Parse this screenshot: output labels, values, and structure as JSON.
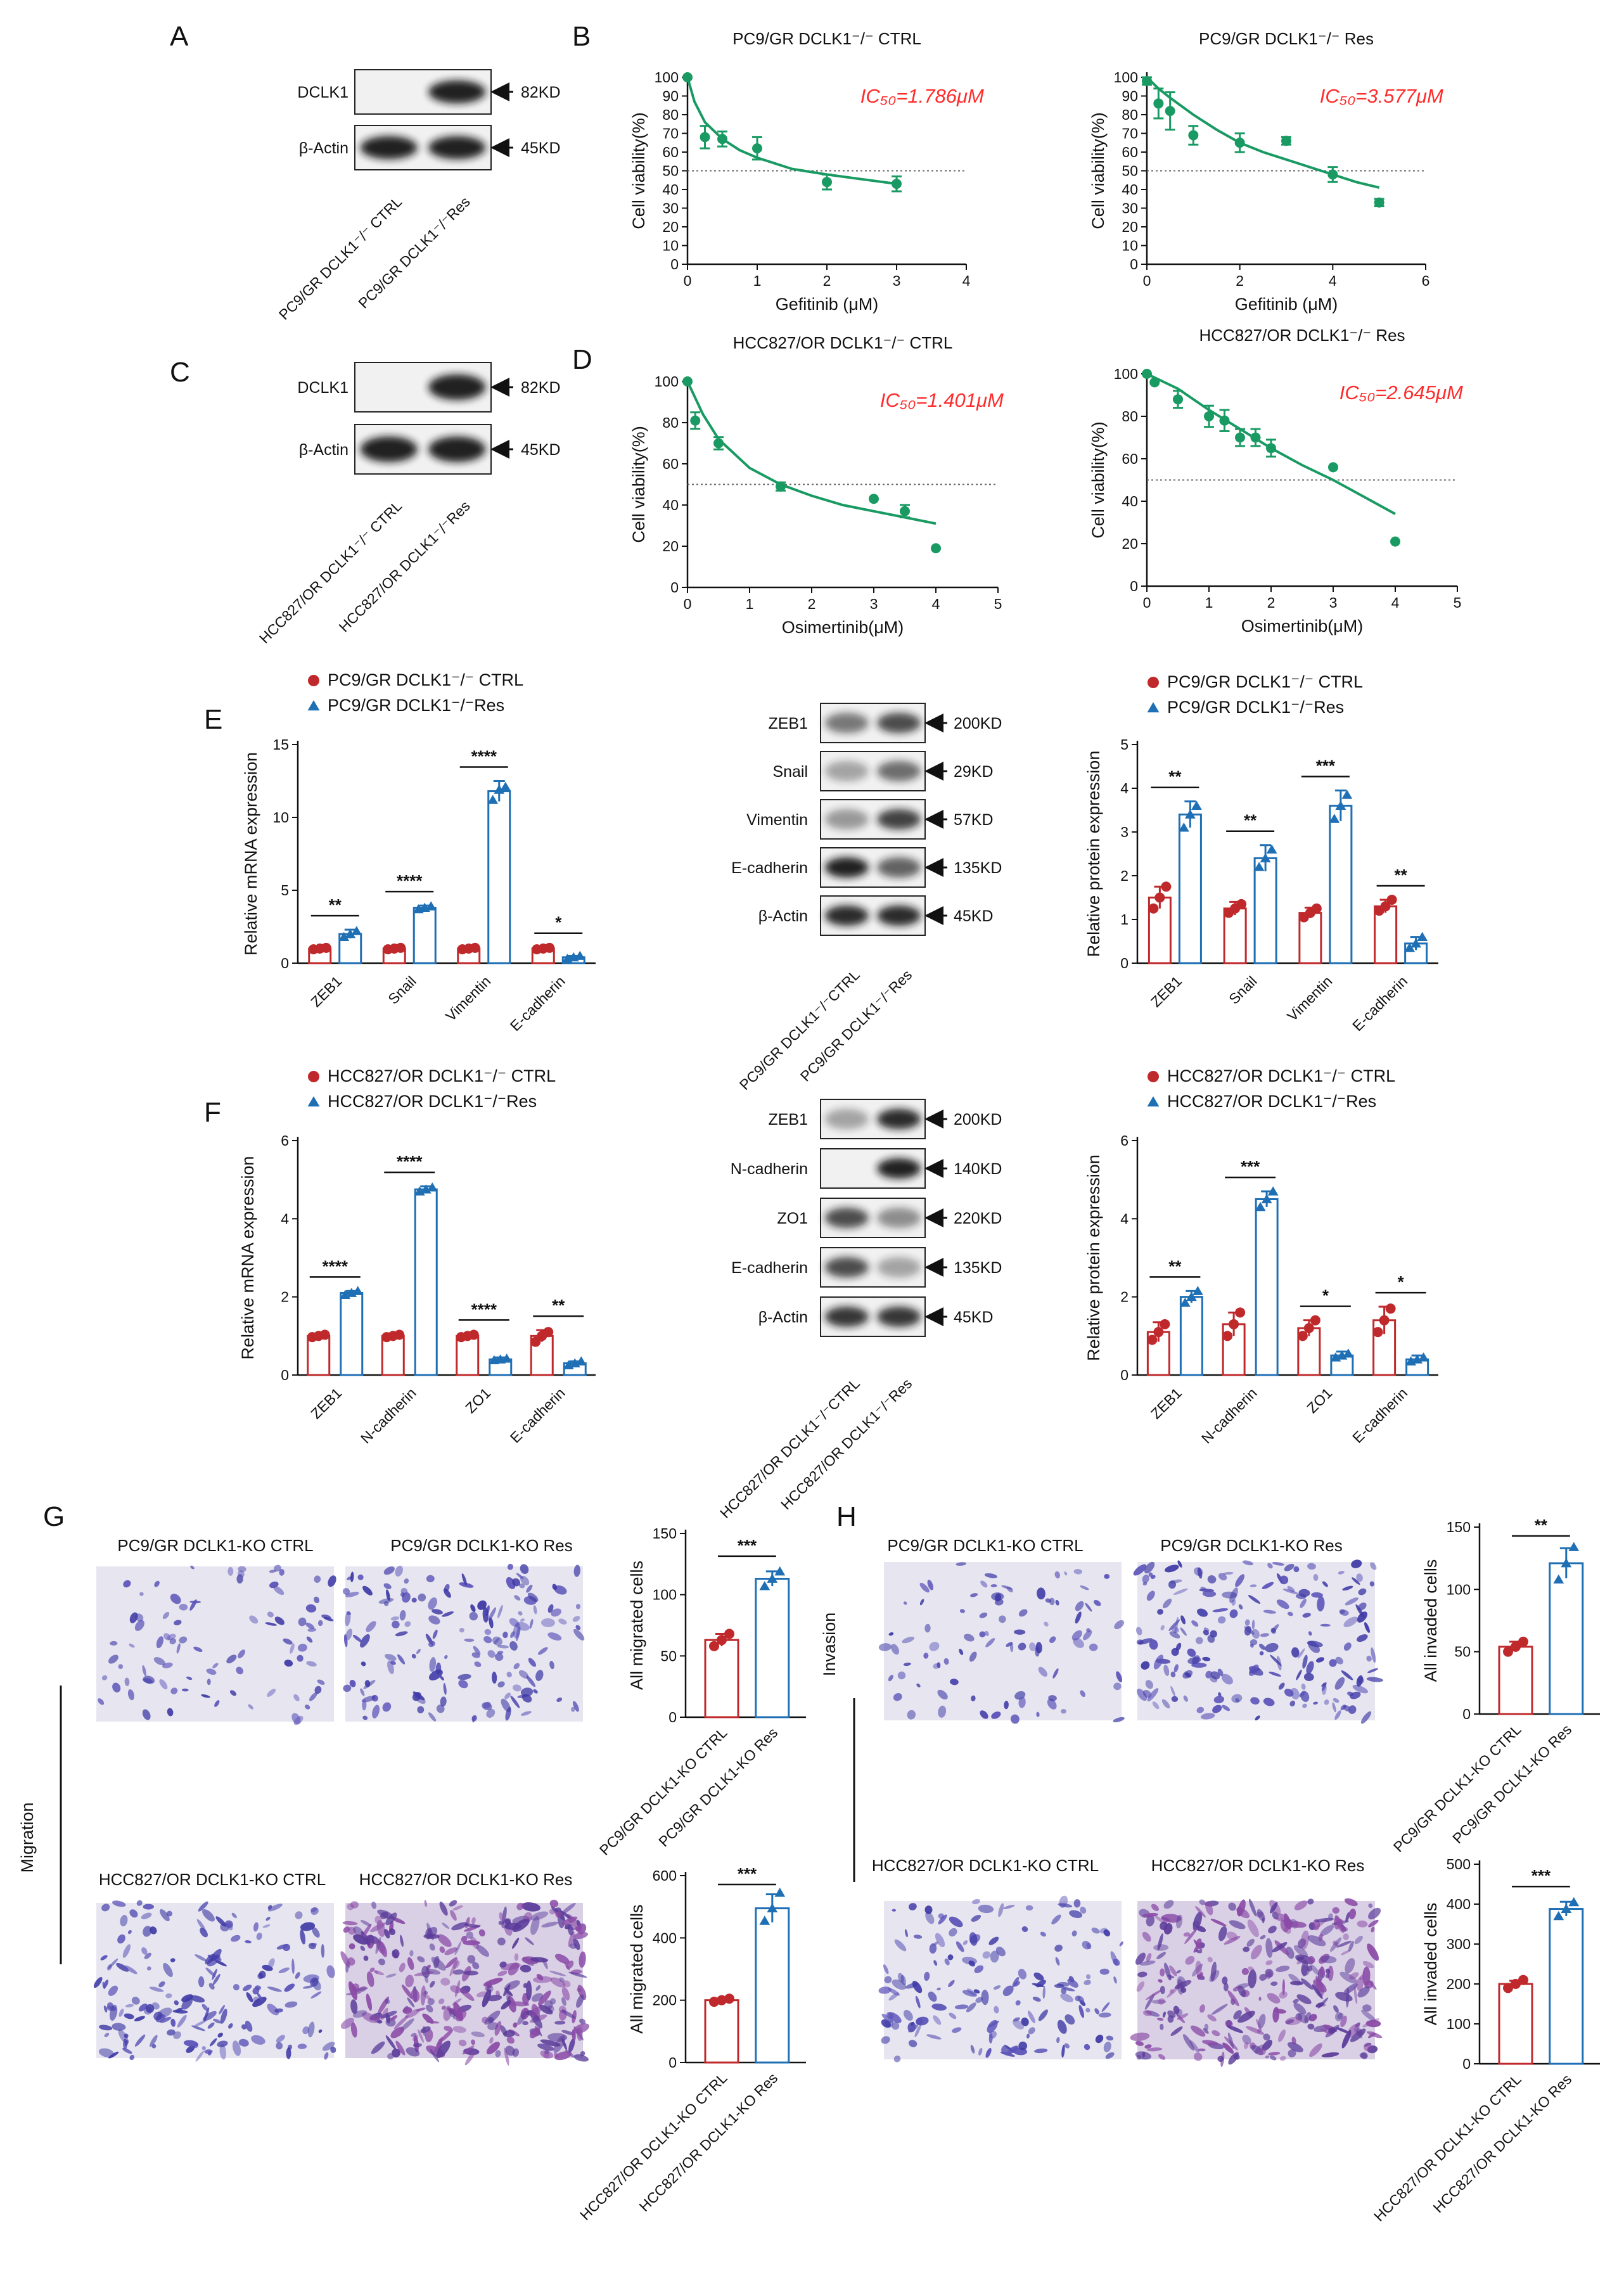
{
  "colors": {
    "ctrl": "#c0292c",
    "res": "#1f6fb5",
    "curve": "#1a9a63",
    "ic50": "#ff2b2b"
  },
  "panels": {
    "A": {
      "letter": "A",
      "bands": [
        "DCLK1",
        "β-Actin"
      ],
      "sizes": [
        "82KD",
        "45KD"
      ],
      "lanes": [
        "PC9/GR DCLK1⁻/⁻ CTRL",
        "PC9/GR DCLK1⁻/⁻Res"
      ],
      "blot_intensity": [
        [
          0.05,
          0.95
        ],
        [
          0.95,
          0.95
        ]
      ]
    },
    "C": {
      "letter": "C",
      "bands": [
        "DCLK1",
        "β-Actin"
      ],
      "sizes": [
        "82KD",
        "45KD"
      ],
      "lanes": [
        "HCC827/OR DCLK1⁻/⁻ CTRL",
        "HCC827/OR DCLK1⁻/⁻Res"
      ],
      "blot_intensity": [
        [
          0.05,
          0.95
        ],
        [
          0.95,
          0.95
        ]
      ]
    },
    "B": {
      "letter": "B",
      "xlabel": "Gefitinib (μM)",
      "ylabel": "Cell viability(%)",
      "ref_line": 50
    },
    "D": {
      "letter": "D",
      "xlabel": "Osimertinib(μM)",
      "ylabel": "Cell viability(%)",
      "ref_line": 50
    },
    "E": {
      "letter": "E",
      "blot_bands": [
        "ZEB1",
        "Snail",
        "Vimentin",
        "E-cadherin",
        "β-Actin"
      ],
      "blot_sizes": [
        "200KD",
        "29KD",
        "57KD",
        "135KD",
        "45KD"
      ],
      "blot_lanes": [
        "PC9/GR DCLK1⁻/⁻CTRL",
        "PC9/GR DCLK1⁻/⁻Res"
      ],
      "blot_intensity": [
        [
          0.55,
          0.75
        ],
        [
          0.35,
          0.6
        ],
        [
          0.4,
          0.8
        ],
        [
          0.95,
          0.65
        ],
        [
          0.9,
          0.9
        ]
      ]
    },
    "F": {
      "letter": "F",
      "blot_bands": [
        "ZEB1",
        "N-cadherin",
        "ZO1",
        "E-cadherin",
        "β-Actin"
      ],
      "blot_sizes": [
        "200KD",
        "140KD",
        "220KD",
        "135KD",
        "45KD"
      ],
      "blot_lanes": [
        "HCC827/OR DCLK1⁻/⁻CTRL",
        "HCC827/OR DCLK1⁻/⁻Res"
      ],
      "blot_intensity": [
        [
          0.35,
          0.9
        ],
        [
          0.05,
          0.95
        ],
        [
          0.75,
          0.45
        ],
        [
          0.75,
          0.35
        ],
        [
          0.85,
          0.85
        ]
      ]
    },
    "G": {
      "letter": "G",
      "side_label": "Migration",
      "image_titles": [
        "PC9/GR DCLK1-KO CTRL",
        "PC9/GR DCLK1-KO Res",
        "HCC827/OR DCLK1-KO CTRL",
        "HCC827/OR DCLK1-KO Res"
      ],
      "image_density": [
        0.25,
        0.45,
        0.5,
        0.9
      ]
    },
    "H": {
      "letter": "H",
      "side_label": "Invasion",
      "image_titles": [
        "PC9/GR DCLK1-KO CTRL",
        "PC9/GR DCLK1-KO Res",
        "HCC827/OR DCLK1-KO CTRL",
        "HCC827/OR DCLK1-KO Res"
      ],
      "image_density": [
        0.25,
        0.55,
        0.45,
        0.85
      ]
    }
  },
  "chart_data": [
    {
      "id": "B1",
      "type": "scatter",
      "title": "PC9/GR DCLK1⁻/⁻ CTRL",
      "xlabel": "Gefitinib (μM)",
      "ylabel": "Cell viability(%)",
      "xlim": [
        0,
        4
      ],
      "ylim": [
        0,
        100
      ],
      "xticks": [
        0,
        1,
        2,
        3,
        4
      ],
      "yticks": [
        0,
        10,
        20,
        30,
        40,
        50,
        60,
        70,
        80,
        90,
        100
      ],
      "ic50_label": "IC₅₀=1.786μM",
      "x": [
        0,
        0.25,
        0.5,
        1,
        2,
        3
      ],
      "y": [
        100,
        68,
        67,
        62,
        44,
        43
      ],
      "err": [
        0,
        6,
        4,
        6,
        4,
        4
      ],
      "curve": [
        [
          0,
          100
        ],
        [
          0.1,
          87
        ],
        [
          0.25,
          76
        ],
        [
          0.5,
          67
        ],
        [
          0.75,
          61
        ],
        [
          1,
          57
        ],
        [
          1.5,
          51
        ],
        [
          2,
          48
        ],
        [
          2.5,
          45.5
        ],
        [
          3,
          43
        ]
      ]
    },
    {
      "id": "B2",
      "type": "scatter",
      "title": "PC9/GR DCLK1⁻/⁻ Res",
      "xlabel": "Gefitinib (μM)",
      "ylabel": "Cell viability(%)",
      "xlim": [
        0,
        6
      ],
      "ylim": [
        0,
        100
      ],
      "xticks": [
        0,
        2,
        4,
        6
      ],
      "yticks": [
        0,
        10,
        20,
        30,
        40,
        50,
        60,
        70,
        80,
        90,
        100
      ],
      "ic50_label": "IC₅₀=3.577μM",
      "x": [
        0,
        0.25,
        0.5,
        1,
        2,
        3,
        4,
        5
      ],
      "y": [
        98,
        86,
        82,
        69,
        65,
        66,
        48,
        33
      ],
      "err": [
        2,
        8,
        10,
        5,
        5,
        2,
        4,
        2
      ],
      "curve": [
        [
          0,
          100
        ],
        [
          0.25,
          94
        ],
        [
          0.5,
          89
        ],
        [
          1,
          80
        ],
        [
          1.5,
          72
        ],
        [
          2,
          65
        ],
        [
          2.5,
          60
        ],
        [
          3,
          56
        ],
        [
          3.5,
          52
        ],
        [
          4,
          48
        ],
        [
          4.5,
          44
        ],
        [
          5,
          41
        ]
      ]
    },
    {
      "id": "D1",
      "type": "scatter",
      "title": "HCC827/OR DCLK1⁻/⁻ CTRL",
      "xlabel": "Osimertinib(μM)",
      "ylabel": "Cell viability(%)",
      "xlim": [
        0,
        5
      ],
      "ylim": [
        0,
        100
      ],
      "xticks": [
        0,
        1,
        2,
        3,
        4,
        5
      ],
      "yticks": [
        0,
        20,
        40,
        60,
        80,
        100
      ],
      "ic50_label": "IC₅₀=1.401μM",
      "x": [
        0,
        0.125,
        0.5,
        1.5,
        3,
        3.5,
        4
      ],
      "y": [
        100,
        81,
        70,
        49,
        43,
        37,
        19
      ],
      "err": [
        0,
        4,
        3,
        2,
        0,
        3,
        0
      ],
      "curve": [
        [
          0,
          100
        ],
        [
          0.25,
          84
        ],
        [
          0.5,
          72
        ],
        [
          1,
          58
        ],
        [
          1.5,
          50
        ],
        [
          2,
          44.5
        ],
        [
          2.5,
          40
        ],
        [
          3,
          37
        ],
        [
          3.5,
          34
        ],
        [
          4,
          31
        ]
      ]
    },
    {
      "id": "D2",
      "type": "scatter",
      "title": "HCC827/OR DCLK1⁻/⁻ Res",
      "xlabel": "Osimertinib(μM)",
      "ylabel": "Cell viability(%)",
      "xlim": [
        0,
        5
      ],
      "ylim": [
        0,
        100
      ],
      "xticks": [
        0,
        1,
        2,
        3,
        4,
        5
      ],
      "yticks": [
        0,
        20,
        40,
        60,
        80,
        100
      ],
      "ic50_label": "IC₅₀=2.645μM",
      "x": [
        0,
        0.125,
        0.5,
        1,
        1.25,
        1.5,
        1.75,
        2,
        3,
        4
      ],
      "y": [
        100,
        96,
        88,
        80,
        78,
        70,
        70,
        65,
        56,
        21
      ],
      "err": [
        0,
        0,
        4,
        5,
        5,
        4,
        4,
        4,
        0,
        0
      ],
      "curve": [
        [
          0,
          100
        ],
        [
          0.5,
          93
        ],
        [
          1,
          83
        ],
        [
          1.5,
          74
        ],
        [
          2,
          65
        ],
        [
          2.5,
          57
        ],
        [
          3,
          50
        ],
        [
          3.5,
          42
        ],
        [
          4,
          34
        ]
      ]
    },
    {
      "id": "E1",
      "type": "bar",
      "categories": [
        "ZEB1",
        "Snail",
        "Vimentin",
        "E-cadherin"
      ],
      "ylabel": "Relative mRNA expression",
      "ylim": [
        0,
        15
      ],
      "yticks": [
        0,
        5,
        10,
        15
      ],
      "legend": [
        "PC9/GR DCLK1⁻/⁻ CTRL",
        "PC9/GR DCLK1⁻/⁻Res"
      ],
      "series": [
        {
          "name": "PC9/GR DCLK1⁻/⁻ CTRL",
          "values": [
            1,
            1,
            1,
            1
          ],
          "err": [
            0.1,
            0.1,
            0.1,
            0.1
          ],
          "points": [
            [
              0.95,
              1.0,
              1.05
            ],
            [
              0.95,
              1.0,
              1.05
            ],
            [
              0.95,
              1.0,
              1.05
            ],
            [
              0.95,
              1.0,
              1.05
            ]
          ]
        },
        {
          "name": "PC9/GR DCLK1⁻/⁻Res",
          "values": [
            2,
            3.8,
            11.8,
            0.4
          ],
          "err": [
            0.3,
            0.15,
            0.7,
            0.1
          ],
          "points": [
            [
              1.8,
              2.0,
              2.2
            ],
            [
              3.7,
              3.8,
              3.9
            ],
            [
              11.2,
              11.9,
              12.1
            ],
            [
              0.3,
              0.4,
              0.5
            ]
          ]
        }
      ],
      "significance": [
        "**",
        "****",
        "****",
        "*"
      ]
    },
    {
      "id": "E2",
      "type": "bar",
      "categories": [
        "ZEB1",
        "Snail",
        "Vimentin",
        "E-cadherin"
      ],
      "ylabel": "Relative protein expression",
      "ylim": [
        0,
        5
      ],
      "yticks": [
        0,
        1,
        2,
        3,
        4,
        5
      ],
      "legend": [
        "PC9/GR DCLK1⁻/⁻ CTRL",
        "PC9/GR DCLK1⁻/⁻Res"
      ],
      "series": [
        {
          "name": "PC9/GR DCLK1⁻/⁻ CTRL",
          "values": [
            1.5,
            1.25,
            1.15,
            1.3
          ],
          "err": [
            0.25,
            0.15,
            0.12,
            0.15
          ],
          "points": [
            [
              1.25,
              1.5,
              1.75
            ],
            [
              1.15,
              1.25,
              1.35
            ],
            [
              1.05,
              1.15,
              1.25
            ],
            [
              1.2,
              1.3,
              1.45
            ]
          ]
        },
        {
          "name": "PC9/GR DCLK1⁻/⁻Res",
          "values": [
            3.4,
            2.4,
            3.6,
            0.45
          ],
          "err": [
            0.3,
            0.3,
            0.35,
            0.15
          ],
          "points": [
            [
              3.1,
              3.4,
              3.6
            ],
            [
              2.2,
              2.4,
              2.6
            ],
            [
              3.3,
              3.6,
              3.85
            ],
            [
              0.35,
              0.45,
              0.6
            ]
          ]
        }
      ],
      "significance": [
        "**",
        "**",
        "***",
        "**"
      ]
    },
    {
      "id": "F1",
      "type": "bar",
      "categories": [
        "ZEB1",
        "N-cadherin",
        "ZO1",
        "E-cadherin"
      ],
      "ylabel": "Relative mRNA expression",
      "ylim": [
        0,
        6
      ],
      "yticks": [
        0,
        2,
        4,
        6
      ],
      "legend": [
        "HCC827/OR DCLK1⁻/⁻ CTRL",
        "HCC827/OR DCLK1⁻/⁻Res"
      ],
      "series": [
        {
          "name": "HCC827/OR DCLK1⁻/⁻ CTRL",
          "values": [
            1,
            1,
            1,
            1
          ],
          "err": [
            0.05,
            0.05,
            0.05,
            0.15
          ],
          "points": [
            [
              0.97,
              1.0,
              1.03
            ],
            [
              0.97,
              1.0,
              1.03
            ],
            [
              0.97,
              1.0,
              1.03
            ],
            [
              0.85,
              1.0,
              1.1
            ]
          ]
        },
        {
          "name": "HCC827/OR DCLK1⁻/⁻Res",
          "values": [
            2.1,
            4.75,
            0.4,
            0.3
          ],
          "err": [
            0.05,
            0.08,
            0.05,
            0.05
          ],
          "points": [
            [
              2.05,
              2.1,
              2.15
            ],
            [
              4.7,
              4.75,
              4.8
            ],
            [
              0.38,
              0.4,
              0.42
            ],
            [
              0.25,
              0.3,
              0.35
            ]
          ]
        }
      ],
      "significance": [
        "****",
        "****",
        "****",
        "**"
      ]
    },
    {
      "id": "F2",
      "type": "bar",
      "categories": [
        "ZEB1",
        "N-cadherin",
        "ZO1",
        "E-cadherin"
      ],
      "ylabel": "Relative protein expression",
      "ylim": [
        0,
        6
      ],
      "yticks": [
        0,
        2,
        4,
        6
      ],
      "legend": [
        "HCC827/OR DCLK1⁻/⁻ CTRL",
        "HCC827/OR DCLK1⁻/⁻Res"
      ],
      "series": [
        {
          "name": "HCC827/OR DCLK1⁻/⁻ CTRL",
          "values": [
            1.1,
            1.3,
            1.2,
            1.4
          ],
          "err": [
            0.25,
            0.3,
            0.2,
            0.35
          ],
          "points": [
            [
              0.9,
              1.1,
              1.3
            ],
            [
              1.0,
              1.3,
              1.6
            ],
            [
              1.0,
              1.2,
              1.4
            ],
            [
              1.1,
              1.4,
              1.7
            ]
          ]
        },
        {
          "name": "HCC827/OR DCLK1⁻/⁻Res",
          "values": [
            2.0,
            4.5,
            0.5,
            0.4
          ],
          "err": [
            0.15,
            0.2,
            0.1,
            0.1
          ],
          "points": [
            [
              1.85,
              2.0,
              2.15
            ],
            [
              4.3,
              4.5,
              4.7
            ],
            [
              0.45,
              0.5,
              0.55
            ],
            [
              0.35,
              0.4,
              0.45
            ]
          ]
        }
      ],
      "significance": [
        "**",
        "***",
        "*",
        "*"
      ]
    },
    {
      "id": "G1",
      "type": "bar",
      "categories": [
        "PC9/GR DCLK1-KO CTRL",
        "PC9/GR DCLK1-KO Res"
      ],
      "ylabel": "All migrated cells",
      "ylim": [
        0,
        150
      ],
      "yticks": [
        0,
        50,
        100,
        150
      ],
      "series": [
        {
          "name": "Migration",
          "values": [
            63,
            113
          ],
          "err": [
            5,
            6
          ],
          "points": [
            [
              58,
              63,
              68
            ],
            [
              107,
              113,
              119
            ]
          ]
        }
      ],
      "significance": "***"
    },
    {
      "id": "G2",
      "type": "bar",
      "categories": [
        "HCC827/OR DCLK1-KO CTRL",
        "HCC827/OR DCLK1-KO Res"
      ],
      "ylabel": "All migrated cells",
      "ylim": [
        0,
        600
      ],
      "yticks": [
        0,
        200,
        400,
        600
      ],
      "series": [
        {
          "name": "Migration",
          "values": [
            200,
            495
          ],
          "err": [
            5,
            45
          ],
          "points": [
            [
              195,
              200,
              205
            ],
            [
              455,
              495,
              545
            ]
          ]
        }
      ],
      "significance": "***"
    },
    {
      "id": "H1",
      "type": "bar",
      "categories": [
        "PC9/GR DCLK1-KO CTRL",
        "PC9/GR DCLK1-KO Res"
      ],
      "ylabel": "All invaded cells",
      "ylim": [
        0,
        150
      ],
      "yticks": [
        0,
        50,
        100,
        150
      ],
      "series": [
        {
          "name": "Invasion",
          "values": [
            54,
            121
          ],
          "err": [
            4,
            12
          ],
          "points": [
            [
              50,
              54,
              58
            ],
            [
              108,
              121,
              134
            ]
          ]
        }
      ],
      "significance": "**"
    },
    {
      "id": "H2",
      "type": "bar",
      "categories": [
        "HCC827/OR DCLK1-KO CTRL",
        "HCC827/OR DCLK1-KO Res"
      ],
      "ylabel": "All invaded cells",
      "ylim": [
        0,
        500
      ],
      "yticks": [
        0,
        100,
        200,
        300,
        400,
        500
      ],
      "series": [
        {
          "name": "Invasion",
          "values": [
            200,
            388
          ],
          "err": [
            8,
            18
          ],
          "points": [
            [
              190,
              200,
              210
            ],
            [
              370,
              388,
              405
            ]
          ]
        }
      ],
      "significance": "***"
    }
  ]
}
